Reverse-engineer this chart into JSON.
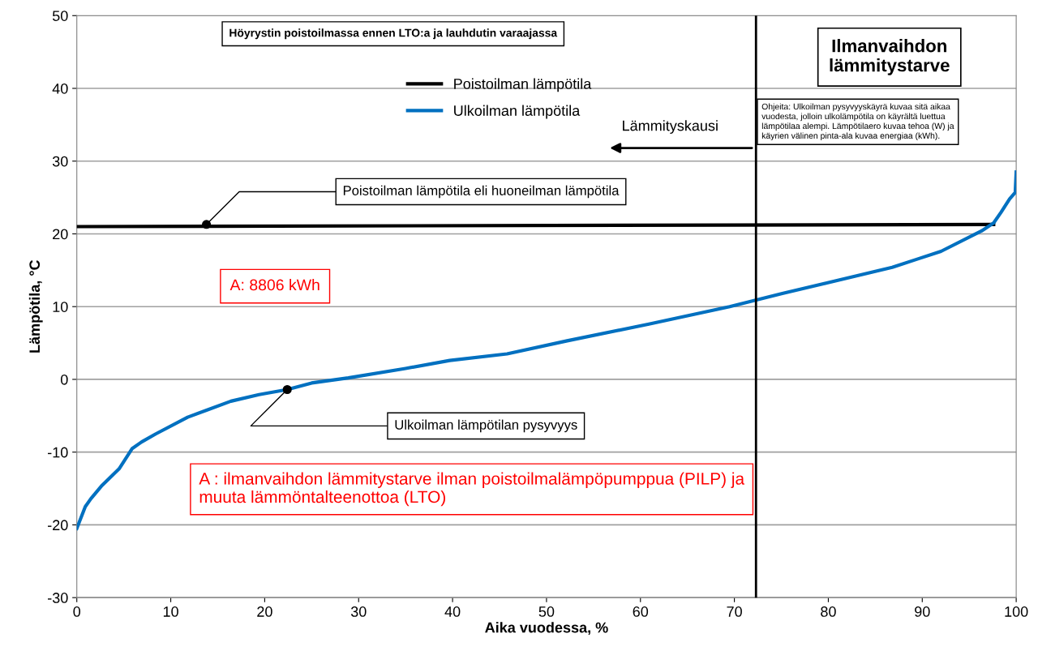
{
  "chart_data": {
    "type": "line",
    "xlabel": "Aika vuodessa, %",
    "ylabel": "Lämpötila, °C",
    "xlim": [
      0,
      100
    ],
    "xticks": [
      0,
      10,
      20,
      30,
      40,
      50,
      60,
      70,
      80,
      90,
      100
    ],
    "ylim": [
      -30,
      50
    ],
    "yticks": [
      -30,
      -20,
      -10,
      0,
      10,
      20,
      30,
      40,
      50
    ],
    "grid": "y",
    "legend": "top",
    "marker": "none",
    "line_style": "solid",
    "series": [
      {
        "name": "Poistoilman lämpötila",
        "color": "#000000",
        "x": [
          0,
          97.6
        ],
        "values": [
          21,
          21.3
        ]
      },
      {
        "name": "Ulkoilman lämpötila",
        "color": "#0070c0",
        "x": [
          0,
          0.9,
          1.5,
          2.6,
          4.5,
          5.9,
          6.9,
          8.4,
          11.8,
          16.4,
          19.4,
          22.4,
          25,
          28.9,
          35,
          39.7,
          45.8,
          52.2,
          60.9,
          69.5,
          75.1,
          86.8,
          89.4,
          92,
          96.3,
          97.6,
          98.4,
          99.3,
          99.9,
          100
        ],
        "values": [
          -20.5,
          -17.5,
          -16.4,
          -14.7,
          -12.3,
          -9.5,
          -8.6,
          -7.5,
          -5.2,
          -3.0,
          -2.1,
          -1.4,
          -0.5,
          0.2,
          1.5,
          2.6,
          3.5,
          5.3,
          7.6,
          10,
          11.8,
          15.4,
          16.5,
          17.6,
          20.4,
          21.5,
          23,
          24.8,
          25.7,
          28.5
        ]
      }
    ],
    "ref_lines": [
      {
        "axis": "x",
        "value": 72.3,
        "color": "#000000"
      }
    ],
    "annotations": [
      "Höyrystin poistoilmassa ennen LTO:a ja lauhdutin varaajassa",
      "Ilmanvaihdon\nlämmitystarve",
      "Ohjeita: Ulkoilman pysyvyyskäyrä kuvaa sitä aikaa\nvuodesta, jolloin ulkolämpötila on käyrältä luettua\nlämpötilaa alempi. Lämpötilaero kuvaa tehoa (W) ja\nkäyrien välinen pinta-ala kuvaa energiaa (kWh).",
      "Lämmityskausi",
      {
        "text": "Poistoilman lämpötila eli huoneilman lämpötila",
        "x": 13.8,
        "y": 21.3
      },
      "A: 8806 kWh",
      {
        "text": "Ulkoilman lämpötilan pysyvyys",
        "x": 22.4,
        "y": -1.4
      },
      "A : ilmanvaihdon lämmitystarve ilman poistoilmalämpöpumppua (PILP) ja\nmuuta lämmöntalteenottoa (LTO)"
    ]
  }
}
